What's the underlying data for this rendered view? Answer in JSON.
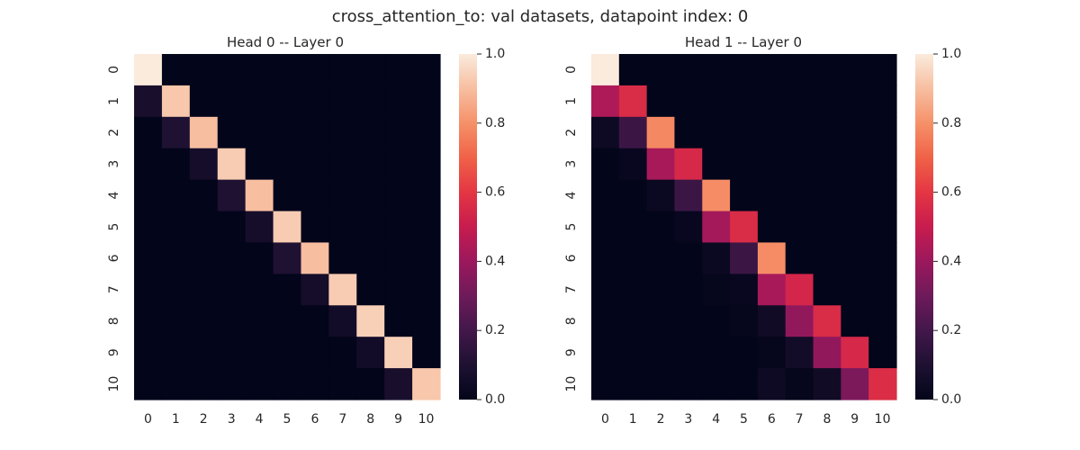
{
  "figure": {
    "suptitle": "cross_attention_to: val datasets, datapoint index: 0"
  },
  "chart_data": [
    {
      "type": "heatmap",
      "title": "Head 0 -- Layer 0",
      "xlabel": "",
      "ylabel": "",
      "x_categories": [
        "0",
        "1",
        "2",
        "3",
        "4",
        "5",
        "6",
        "7",
        "8",
        "9",
        "10"
      ],
      "y_categories": [
        "0",
        "1",
        "2",
        "3",
        "4",
        "5",
        "6",
        "7",
        "8",
        "9",
        "10"
      ],
      "colorbar": {
        "range": [
          0,
          1
        ],
        "ticks": [
          "0.0",
          "0.2",
          "0.4",
          "0.6",
          "0.8",
          "1.0"
        ],
        "colormap": "rocket"
      },
      "values": [
        [
          1.0,
          0,
          0,
          0,
          0,
          0,
          0,
          0,
          0,
          0,
          0
        ],
        [
          0.08,
          0.92,
          0,
          0,
          0,
          0,
          0,
          0,
          0,
          0,
          0
        ],
        [
          0,
          0.1,
          0.9,
          0,
          0,
          0,
          0,
          0,
          0,
          0,
          0
        ],
        [
          0,
          0,
          0.07,
          0.93,
          0,
          0,
          0,
          0,
          0,
          0,
          0
        ],
        [
          0,
          0,
          0,
          0.1,
          0.9,
          0,
          0,
          0,
          0,
          0,
          0
        ],
        [
          0,
          0,
          0,
          0,
          0.07,
          0.93,
          0,
          0,
          0,
          0,
          0
        ],
        [
          0,
          0,
          0,
          0,
          0,
          0.1,
          0.9,
          0,
          0,
          0,
          0
        ],
        [
          0,
          0,
          0,
          0,
          0,
          0,
          0.07,
          0.93,
          0,
          0,
          0
        ],
        [
          0,
          0,
          0,
          0,
          0,
          0,
          0,
          0.06,
          0.94,
          0,
          0
        ],
        [
          0,
          0,
          0,
          0,
          0,
          0,
          0,
          0,
          0.06,
          0.94,
          0
        ],
        [
          0,
          0,
          0,
          0,
          0,
          0,
          0,
          0,
          0,
          0.08,
          0.92
        ]
      ]
    },
    {
      "type": "heatmap",
      "title": "Head 1 -- Layer 0",
      "xlabel": "",
      "ylabel": "",
      "x_categories": [
        "0",
        "1",
        "2",
        "3",
        "4",
        "5",
        "6",
        "7",
        "8",
        "9",
        "10"
      ],
      "y_categories": [
        "0",
        "1",
        "2",
        "3",
        "4",
        "5",
        "6",
        "7",
        "8",
        "9",
        "10"
      ],
      "colorbar": {
        "range": [
          0,
          1
        ],
        "ticks": [
          "0.0",
          "0.2",
          "0.4",
          "0.6",
          "0.8",
          "1.0"
        ],
        "colormap": "rocket"
      },
      "values": [
        [
          1.0,
          0,
          0,
          0,
          0,
          0,
          0,
          0,
          0,
          0,
          0
        ],
        [
          0.44,
          0.56,
          0,
          0,
          0,
          0,
          0,
          0,
          0,
          0,
          0
        ],
        [
          0.04,
          0.18,
          0.78,
          0,
          0,
          0,
          0,
          0,
          0,
          0,
          0
        ],
        [
          0,
          0.02,
          0.43,
          0.55,
          0,
          0,
          0,
          0,
          0,
          0,
          0
        ],
        [
          0,
          0,
          0.03,
          0.18,
          0.79,
          0,
          0,
          0,
          0,
          0,
          0
        ],
        [
          0,
          0,
          0,
          0.02,
          0.42,
          0.56,
          0,
          0,
          0,
          0,
          0
        ],
        [
          0,
          0,
          0,
          0,
          0.03,
          0.18,
          0.79,
          0,
          0,
          0,
          0
        ],
        [
          0,
          0,
          0,
          0,
          0.01,
          0.02,
          0.43,
          0.54,
          0,
          0,
          0
        ],
        [
          0,
          0,
          0,
          0,
          0,
          0.01,
          0.05,
          0.38,
          0.56,
          0,
          0
        ],
        [
          0,
          0,
          0,
          0,
          0,
          0,
          0.01,
          0.06,
          0.38,
          0.55,
          0
        ],
        [
          0,
          0,
          0,
          0,
          0,
          0,
          0.04,
          0.01,
          0.05,
          0.33,
          0.57
        ]
      ]
    }
  ]
}
